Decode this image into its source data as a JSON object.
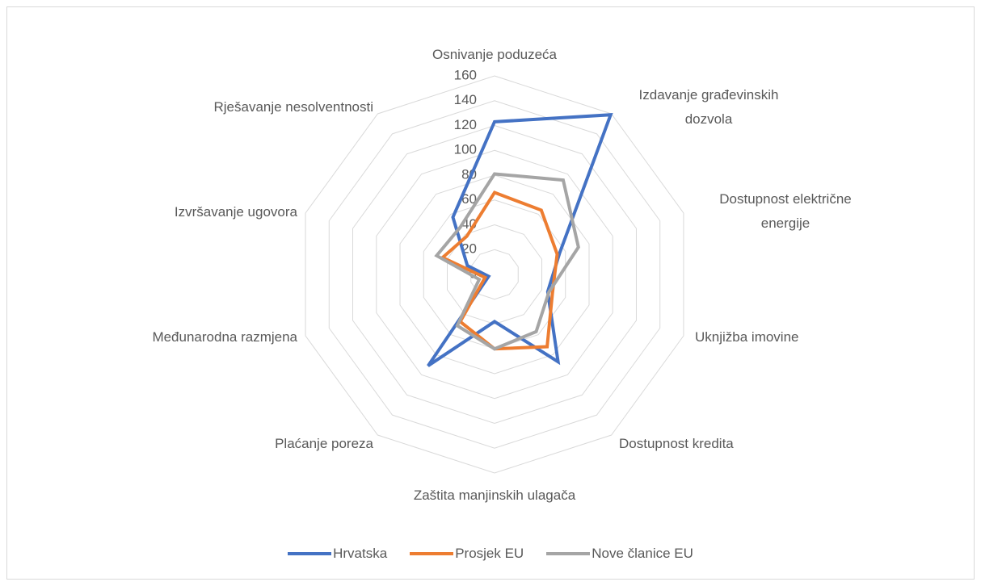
{
  "chart_data": {
    "type": "radar",
    "categories": [
      "Osnivanje poduzeća",
      "Izdavanje građevinskih dozvola",
      "Dostupnost električne energije",
      "Uknjižba imovine",
      "Dostupnost kredita",
      "Zaštita manjinskih ulagača",
      "Plaćanje poreza",
      "Međunarodna razmjena",
      "Izvršavanje ugovora",
      "Rješavanje nesolventnosti"
    ],
    "series": [
      {
        "name": "Hrvatska",
        "color": "#4472c4",
        "values": [
          123,
          159,
          55,
          45,
          87,
          38,
          91,
          5,
          23,
          57
        ]
      },
      {
        "name": "Prosjek EU",
        "color": "#ed7d31",
        "values": [
          66,
          64,
          53,
          49,
          72,
          60,
          47,
          8,
          44,
          38
        ]
      },
      {
        "name": "Nove članice EU",
        "color": "#a5a5a5",
        "values": [
          81,
          94,
          71,
          46,
          57,
          60,
          51,
          13,
          49,
          47
        ]
      }
    ],
    "ylim": [
      0,
      160
    ],
    "yticks": [
      0,
      20,
      40,
      60,
      80,
      100,
      120,
      140,
      160
    ],
    "grid": true,
    "legend": "bottom"
  }
}
